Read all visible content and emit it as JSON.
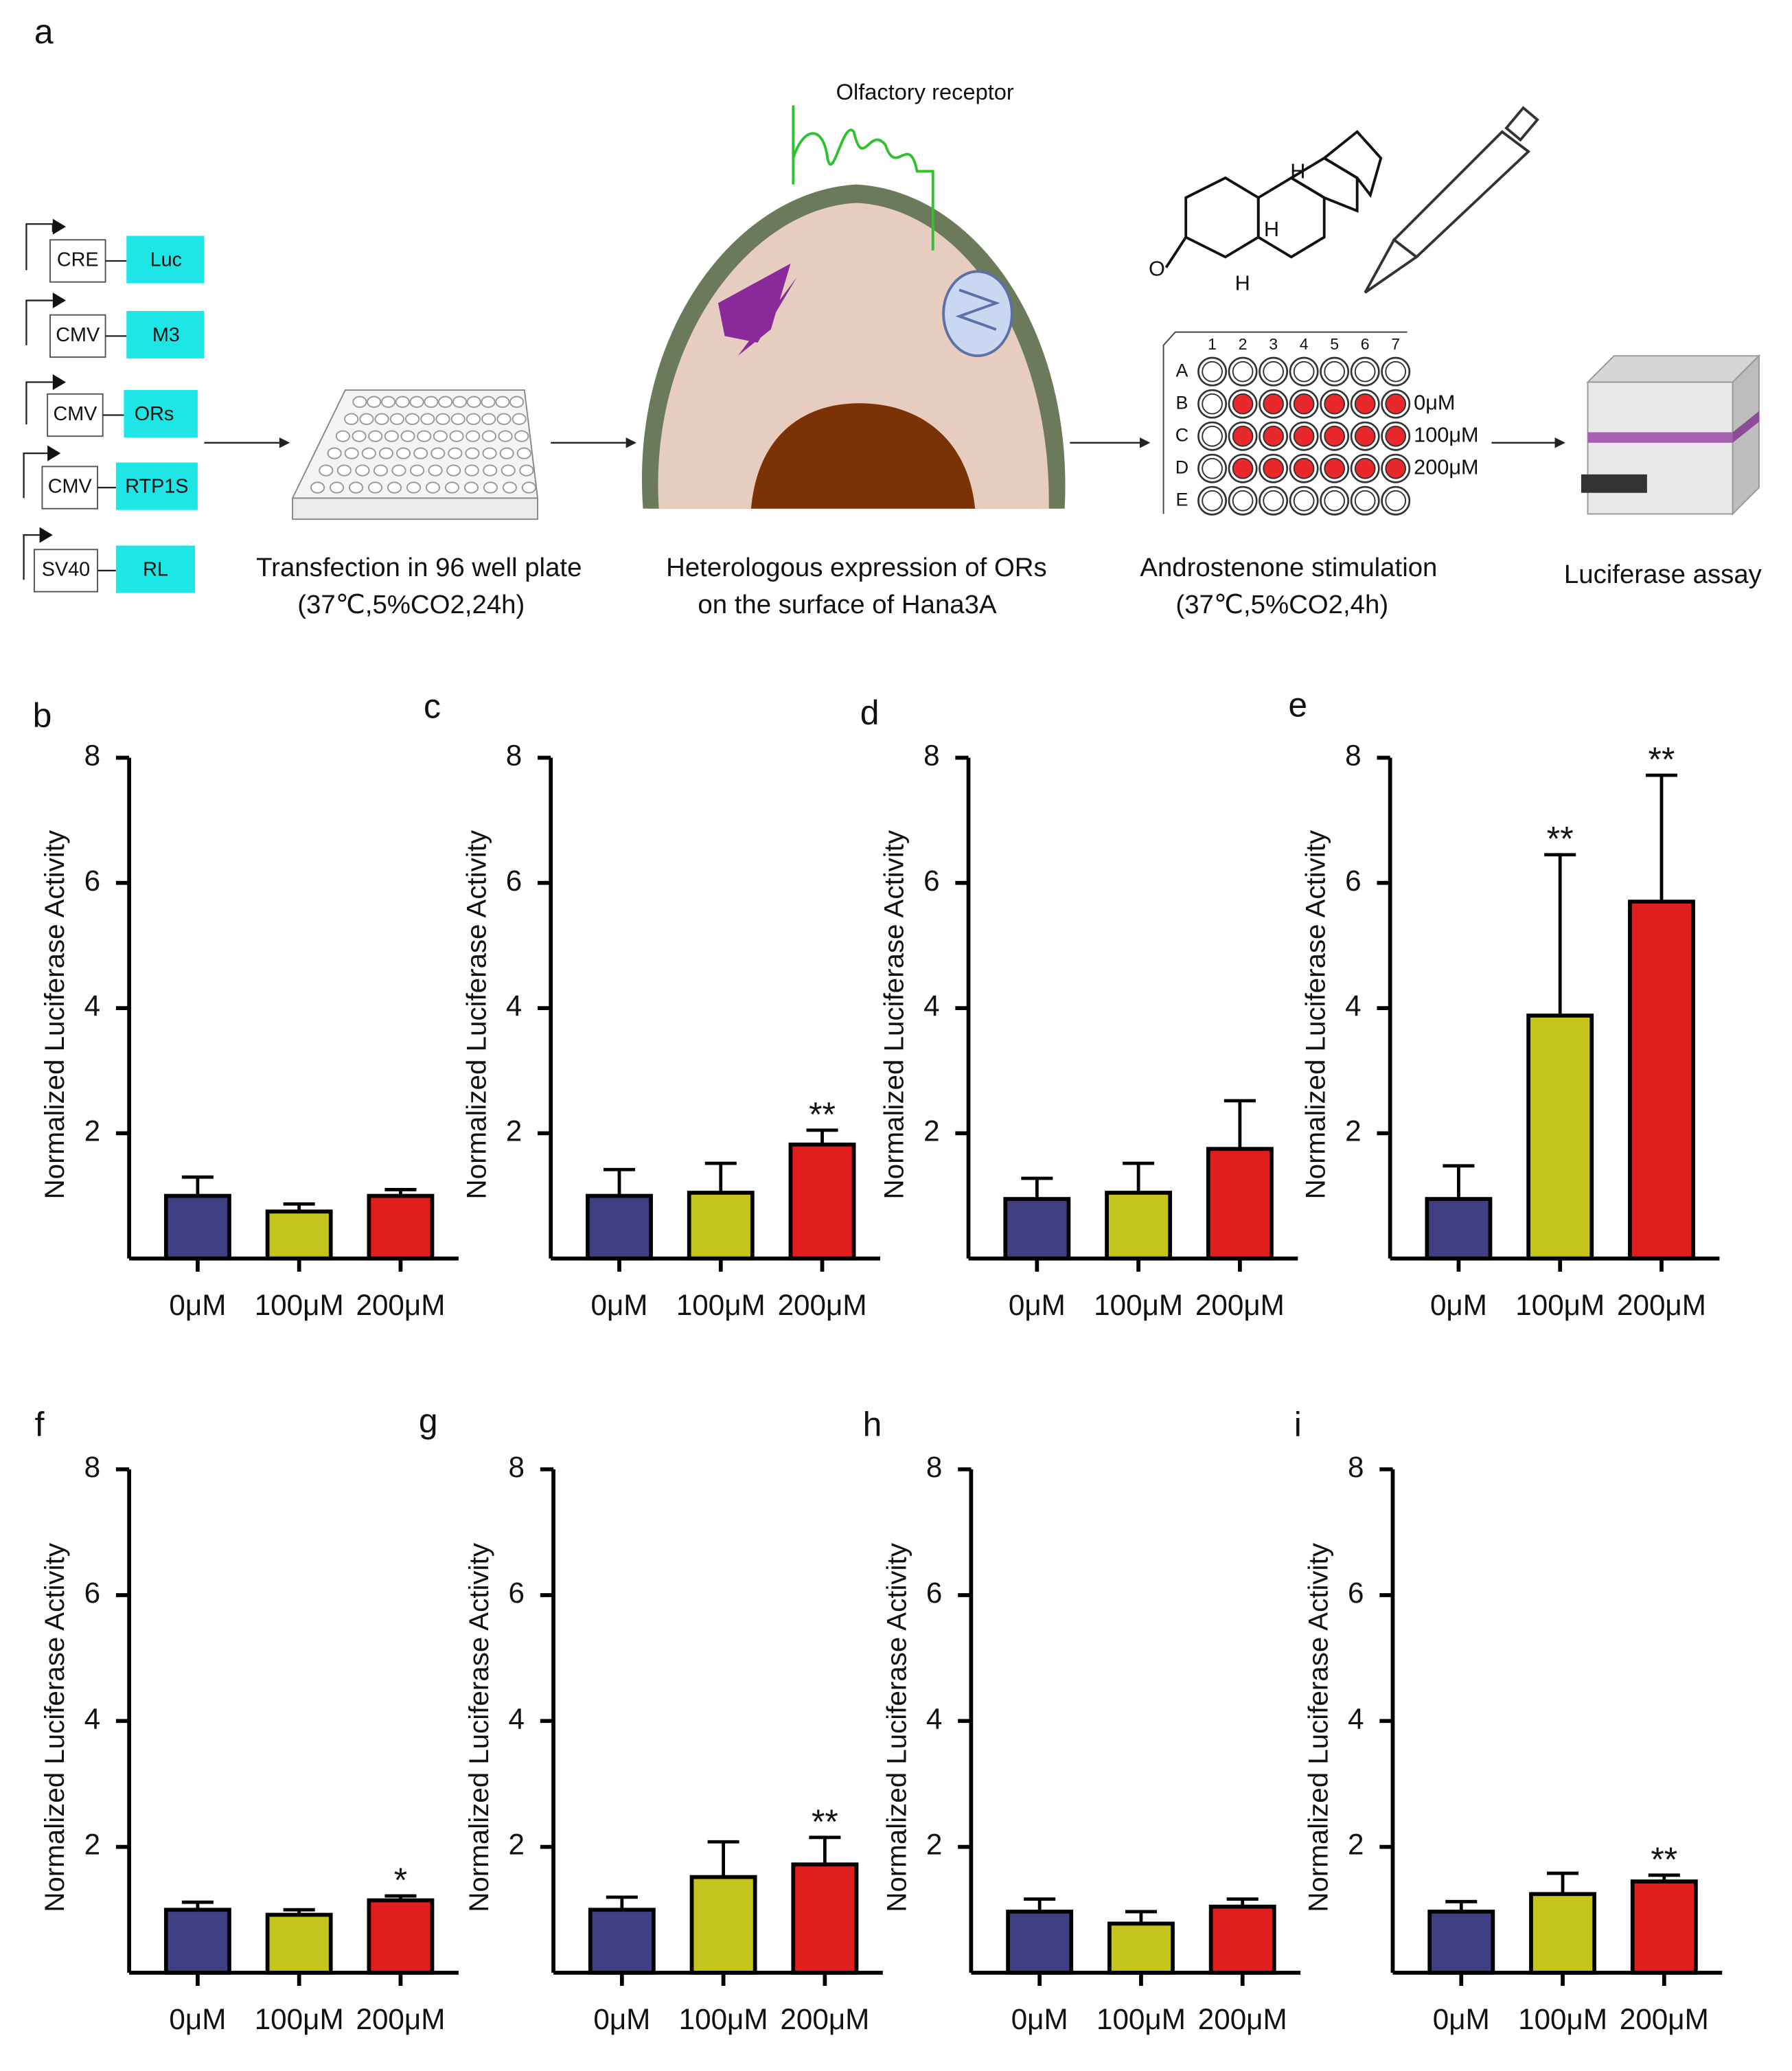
{
  "panel_a": {
    "label": "a",
    "constructs": [
      {
        "promoter": "CRE",
        "gene": "Luc"
      },
      {
        "promoter": "CMV",
        "gene": "M3"
      },
      {
        "promoter": "CMV",
        "gene": "ORs"
      },
      {
        "promoter": "CMV",
        "gene": "RTP1S"
      },
      {
        "promoter": "SV40",
        "gene": "RL"
      }
    ],
    "receptor_label": "Olfactory receptor",
    "molecule_atoms": [
      "H",
      "H",
      "H",
      "O"
    ],
    "plate_rows": [
      "A",
      "B",
      "C",
      "D",
      "E"
    ],
    "plate_cols": [
      "1",
      "2",
      "3",
      "4",
      "5",
      "6",
      "7"
    ],
    "concentrations": [
      "0μM",
      "100μM",
      "200μM"
    ],
    "steps": [
      {
        "line1": "Transfection in 96 well plate",
        "line2": "(37℃,5%CO2,24h)"
      },
      {
        "line1": "Heterologous expression of ORs",
        "line2": "on the surface of Hana3A"
      },
      {
        "line1": "Androstenone stimulation",
        "line2": "(37℃,5%CO2,4h)"
      },
      {
        "line1": "Luciferase assay"
      }
    ]
  },
  "chart_data": [
    {
      "type": "bar",
      "label": "b",
      "ylabel": "Normalized Luciferase Activity",
      "categories": [
        "0μM",
        "100μM",
        "200μM"
      ],
      "values": [
        1.0,
        0.75,
        1.0
      ],
      "errors": [
        0.3,
        0.12,
        0.1
      ],
      "significance": [
        null,
        null,
        null
      ],
      "colors": [
        "#3f3f84",
        "#c4c41c",
        "#e01e1e"
      ],
      "ylim": [
        0,
        8
      ],
      "yticks": [
        2,
        4,
        6,
        8
      ]
    },
    {
      "type": "bar",
      "label": "c",
      "ylabel": "Normalized Luciferase Activity",
      "categories": [
        "0μM",
        "100μM",
        "200μM"
      ],
      "values": [
        1.0,
        1.05,
        1.82
      ],
      "errors": [
        0.42,
        0.47,
        0.23
      ],
      "significance": [
        null,
        null,
        "**"
      ],
      "colors": [
        "#3f3f84",
        "#c4c41c",
        "#e01e1e"
      ],
      "ylim": [
        0,
        8
      ],
      "yticks": [
        2,
        4,
        6,
        8
      ]
    },
    {
      "type": "bar",
      "label": "d",
      "ylabel": "Normalized Luciferase Activity",
      "categories": [
        "0μM",
        "100μM",
        "200μM"
      ],
      "values": [
        0.95,
        1.05,
        1.75
      ],
      "errors": [
        0.33,
        0.47,
        0.77
      ],
      "significance": [
        null,
        null,
        null
      ],
      "colors": [
        "#3f3f84",
        "#c4c41c",
        "#e01e1e"
      ],
      "ylim": [
        0,
        8
      ],
      "yticks": [
        2,
        4,
        6,
        8
      ]
    },
    {
      "type": "bar",
      "label": "e",
      "ylabel": "Normalized Luciferase Activity",
      "categories": [
        "0μM",
        "100μM",
        "200μM"
      ],
      "values": [
        0.95,
        3.88,
        5.7
      ],
      "errors": [
        0.53,
        2.57,
        2.02
      ],
      "significance": [
        null,
        "**",
        "**"
      ],
      "colors": [
        "#3f3f84",
        "#c4c41c",
        "#e01e1e"
      ],
      "ylim": [
        0,
        8
      ],
      "yticks": [
        2,
        4,
        6,
        8
      ]
    },
    {
      "type": "bar",
      "label": "f",
      "ylabel": "Normalized Luciferase Activity",
      "categories": [
        "0μM",
        "100μM",
        "200μM"
      ],
      "values": [
        1.0,
        0.92,
        1.15
      ],
      "errors": [
        0.12,
        0.08,
        0.07
      ],
      "significance": [
        null,
        null,
        "*"
      ],
      "colors": [
        "#3f3f84",
        "#c4c41c",
        "#e01e1e"
      ],
      "ylim": [
        0,
        8
      ],
      "yticks": [
        2,
        4,
        6,
        8
      ]
    },
    {
      "type": "bar",
      "label": "g",
      "ylabel": "Normalized Luciferase Activity",
      "categories": [
        "0μM",
        "100μM",
        "200μM"
      ],
      "values": [
        1.0,
        1.52,
        1.72
      ],
      "errors": [
        0.2,
        0.56,
        0.43
      ],
      "significance": [
        null,
        null,
        "**"
      ],
      "colors": [
        "#3f3f84",
        "#c4c41c",
        "#e01e1e"
      ],
      "ylim": [
        0,
        8
      ],
      "yticks": [
        2,
        4,
        6,
        8
      ]
    },
    {
      "type": "bar",
      "label": "h",
      "ylabel": "Normalized Luciferase Activity",
      "categories": [
        "0μM",
        "100μM",
        "200μM"
      ],
      "values": [
        0.97,
        0.78,
        1.05
      ],
      "errors": [
        0.2,
        0.19,
        0.12
      ],
      "significance": [
        null,
        null,
        null
      ],
      "colors": [
        "#3f3f84",
        "#c4c41c",
        "#e01e1e"
      ],
      "ylim": [
        0,
        8
      ],
      "yticks": [
        2,
        4,
        6,
        8
      ]
    },
    {
      "type": "bar",
      "label": "i",
      "ylabel": "Normalized Luciferase Activity",
      "categories": [
        "0μM",
        "100μM",
        "200μM"
      ],
      "values": [
        0.97,
        1.25,
        1.45
      ],
      "errors": [
        0.16,
        0.33,
        0.1
      ],
      "significance": [
        null,
        null,
        "**"
      ],
      "colors": [
        "#3f3f84",
        "#c4c41c",
        "#e01e1e"
      ],
      "ylim": [
        0,
        8
      ],
      "yticks": [
        2,
        4,
        6,
        8
      ]
    }
  ]
}
